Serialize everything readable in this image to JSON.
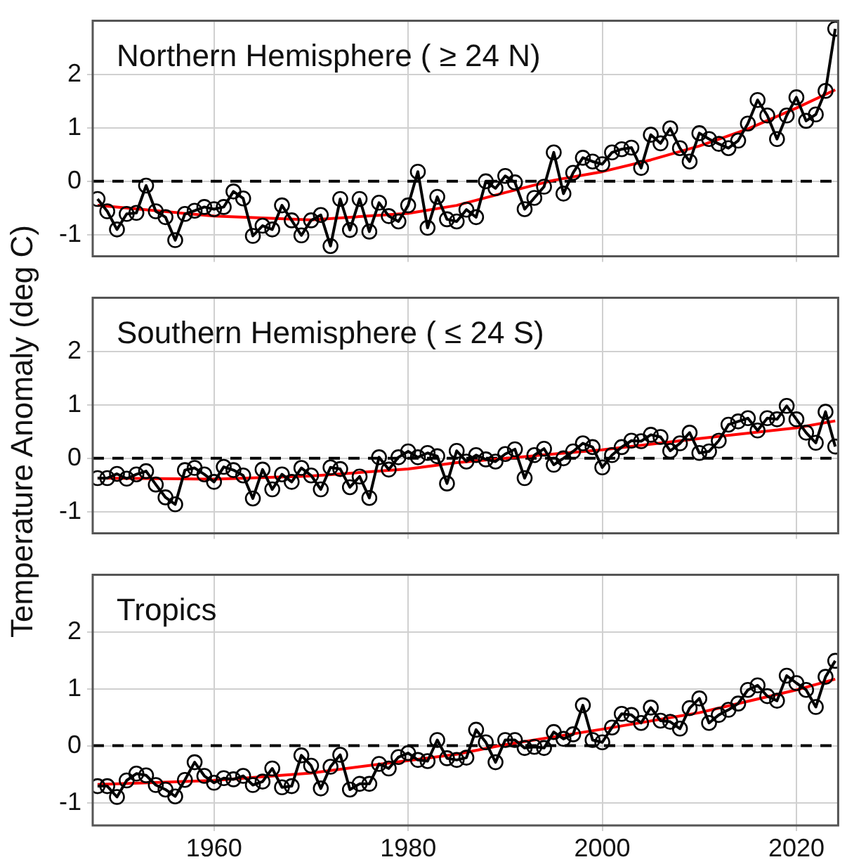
{
  "chart_data": [
    {
      "type": "line",
      "title": "Northern Hemisphere ( ≥ 24 N)",
      "xlim": [
        1947.5,
        2024.3
      ],
      "ylim": [
        -1.4,
        3
      ],
      "xticks": [
        1960,
        1980,
        2000,
        2020
      ],
      "yticks": [
        -1,
        0,
        1,
        2
      ],
      "grid": true,
      "tick_labels": "y",
      "ref_lines": [
        {
          "axis": "y",
          "value": 0,
          "color": "#000000",
          "line_style": "dashed"
        }
      ],
      "x": [
        1948,
        1949,
        1950,
        1951,
        1952,
        1953,
        1954,
        1955,
        1956,
        1957,
        1958,
        1959,
        1960,
        1961,
        1962,
        1963,
        1964,
        1965,
        1966,
        1967,
        1968,
        1969,
        1970,
        1971,
        1972,
        1973,
        1974,
        1975,
        1976,
        1977,
        1978,
        1979,
        1980,
        1981,
        1982,
        1983,
        1984,
        1985,
        1986,
        1987,
        1988,
        1989,
        1990,
        1991,
        1992,
        1993,
        1994,
        1995,
        1996,
        1997,
        1998,
        1999,
        2000,
        2001,
        2002,
        2003,
        2004,
        2005,
        2006,
        2007,
        2008,
        2009,
        2010,
        2011,
        2012,
        2013,
        2014,
        2015,
        2016,
        2017,
        2018,
        2019,
        2020,
        2021,
        2022,
        2023,
        2024
      ],
      "series": [
        {
          "type": "line",
          "color": "#000000",
          "marker": "circle",
          "line_style": "solid",
          "values": [
            -0.33,
            -0.56,
            -0.9,
            -0.61,
            -0.59,
            -0.08,
            -0.56,
            -0.67,
            -1.1,
            -0.61,
            -0.55,
            -0.48,
            -0.52,
            -0.48,
            -0.19,
            -0.32,
            -1.02,
            -0.83,
            -0.9,
            -0.45,
            -0.73,
            -1.01,
            -0.73,
            -0.63,
            -1.21,
            -0.33,
            -0.91,
            -0.33,
            -0.94,
            -0.4,
            -0.65,
            -0.75,
            -0.45,
            0.18,
            -0.87,
            -0.29,
            -0.71,
            -0.75,
            -0.53,
            -0.67,
            0.0,
            -0.13,
            0.1,
            -0.02,
            -0.52,
            -0.31,
            -0.1,
            0.54,
            -0.23,
            0.16,
            0.44,
            0.37,
            0.32,
            0.54,
            0.6,
            0.63,
            0.25,
            0.87,
            0.71,
            0.99,
            0.62,
            0.37,
            0.9,
            0.79,
            0.7,
            0.62,
            0.76,
            1.08,
            1.52,
            1.23,
            0.79,
            1.23,
            1.57,
            1.13,
            1.25,
            1.69,
            2.85
          ]
        },
        {
          "type": "line",
          "color": "#ff0000",
          "marker": "none",
          "line_style": "solid",
          "x": [
            1948,
            1960,
            1970,
            1980,
            1985,
            1990,
            1995,
            2000,
            2005,
            2010,
            2015,
            2020,
            2024
          ],
          "values": [
            -0.45,
            -0.65,
            -0.72,
            -0.6,
            -0.45,
            -0.21,
            0.02,
            0.18,
            0.4,
            0.66,
            0.98,
            1.37,
            1.71
          ]
        }
      ]
    },
    {
      "type": "line",
      "title": "Southern Hemisphere ( ≤ 24 S)",
      "ylabel": "Temperature Anomaly (deg C)",
      "xlim": [
        1947.5,
        2024.3
      ],
      "ylim": [
        -1.4,
        3
      ],
      "xticks": [
        1960,
        1980,
        2000,
        2020
      ],
      "yticks": [
        -1,
        0,
        1,
        2
      ],
      "grid": true,
      "tick_labels": "y",
      "ref_lines": [
        {
          "axis": "y",
          "value": 0,
          "color": "#000000",
          "line_style": "dashed"
        }
      ],
      "x": [
        1948,
        1949,
        1950,
        1951,
        1952,
        1953,
        1954,
        1955,
        1956,
        1957,
        1958,
        1959,
        1960,
        1961,
        1962,
        1963,
        1964,
        1965,
        1966,
        1967,
        1968,
        1969,
        1970,
        1971,
        1972,
        1973,
        1974,
        1975,
        1976,
        1977,
        1978,
        1979,
        1980,
        1981,
        1982,
        1983,
        1984,
        1985,
        1986,
        1987,
        1988,
        1989,
        1990,
        1991,
        1992,
        1993,
        1994,
        1995,
        1996,
        1997,
        1998,
        1999,
        2000,
        2001,
        2002,
        2003,
        2004,
        2005,
        2006,
        2007,
        2008,
        2009,
        2010,
        2011,
        2012,
        2013,
        2014,
        2015,
        2016,
        2017,
        2018,
        2019,
        2020,
        2021,
        2022,
        2023,
        2024
      ],
      "series": [
        {
          "type": "line",
          "color": "#000000",
          "marker": "circle",
          "line_style": "solid",
          "values": [
            -0.37,
            -0.37,
            -0.29,
            -0.38,
            -0.3,
            -0.24,
            -0.49,
            -0.73,
            -0.86,
            -0.22,
            -0.18,
            -0.3,
            -0.44,
            -0.16,
            -0.22,
            -0.32,
            -0.75,
            -0.21,
            -0.58,
            -0.3,
            -0.44,
            -0.18,
            -0.32,
            -0.58,
            -0.17,
            -0.2,
            -0.54,
            -0.34,
            -0.74,
            0.02,
            -0.21,
            0.02,
            0.13,
            0.02,
            0.1,
            0.04,
            -0.47,
            0.14,
            -0.06,
            0.06,
            -0.02,
            -0.06,
            0.08,
            0.17,
            -0.37,
            0.06,
            0.18,
            -0.12,
            0.0,
            0.13,
            0.28,
            0.21,
            -0.17,
            0.06,
            0.21,
            0.33,
            0.32,
            0.44,
            0.4,
            0.14,
            0.28,
            0.48,
            0.1,
            0.13,
            0.33,
            0.63,
            0.69,
            0.75,
            0.52,
            0.75,
            0.73,
            0.98,
            0.73,
            0.48,
            0.29,
            0.87,
            0.22
          ]
        },
        {
          "type": "line",
          "color": "#ff0000",
          "marker": "none",
          "line_style": "solid",
          "x": [
            1948,
            1960,
            1970,
            1980,
            1985,
            1990,
            2000,
            2010,
            2020,
            2024
          ],
          "values": [
            -0.37,
            -0.39,
            -0.33,
            -0.2,
            -0.08,
            0.0,
            0.16,
            0.37,
            0.57,
            0.7
          ]
        }
      ]
    },
    {
      "type": "line",
      "title": "Tropics",
      "xlim": [
        1947.5,
        2024.3
      ],
      "ylim": [
        -1.4,
        3
      ],
      "xticks": [
        1960,
        1980,
        2000,
        2020
      ],
      "yticks": [
        -1,
        0,
        1,
        2
      ],
      "grid": true,
      "ref_lines": [
        {
          "axis": "y",
          "value": 0,
          "color": "#000000",
          "line_style": "dashed"
        }
      ],
      "x": [
        1948,
        1949,
        1950,
        1951,
        1952,
        1953,
        1954,
        1955,
        1956,
        1957,
        1958,
        1959,
        1960,
        1961,
        1962,
        1963,
        1964,
        1965,
        1966,
        1967,
        1968,
        1969,
        1970,
        1971,
        1972,
        1973,
        1974,
        1975,
        1976,
        1977,
        1978,
        1979,
        1980,
        1981,
        1982,
        1983,
        1984,
        1985,
        1986,
        1987,
        1988,
        1989,
        1990,
        1991,
        1992,
        1993,
        1994,
        1995,
        1996,
        1997,
        1998,
        1999,
        2000,
        2001,
        2002,
        2003,
        2004,
        2005,
        2006,
        2007,
        2008,
        2009,
        2010,
        2011,
        2012,
        2013,
        2014,
        2015,
        2016,
        2017,
        2018,
        2019,
        2020,
        2021,
        2022,
        2023,
        2024
      ],
      "series": [
        {
          "type": "line",
          "color": "#000000",
          "marker": "circle",
          "line_style": "solid",
          "values": [
            -0.71,
            -0.71,
            -0.9,
            -0.61,
            -0.49,
            -0.52,
            -0.69,
            -0.77,
            -0.89,
            -0.6,
            -0.29,
            -0.53,
            -0.65,
            -0.57,
            -0.59,
            -0.53,
            -0.69,
            -0.63,
            -0.4,
            -0.73,
            -0.71,
            -0.17,
            -0.35,
            -0.75,
            -0.37,
            -0.16,
            -0.77,
            -0.67,
            -0.67,
            -0.32,
            -0.4,
            -0.2,
            -0.13,
            -0.25,
            -0.27,
            0.1,
            -0.22,
            -0.25,
            -0.21,
            0.28,
            0.06,
            -0.29,
            0.1,
            0.1,
            -0.04,
            -0.02,
            -0.04,
            0.24,
            0.12,
            0.2,
            0.71,
            0.1,
            0.06,
            0.32,
            0.56,
            0.54,
            0.4,
            0.67,
            0.44,
            0.42,
            0.3,
            0.66,
            0.83,
            0.4,
            0.54,
            0.63,
            0.74,
            0.98,
            1.06,
            0.87,
            0.79,
            1.23,
            1.1,
            0.98,
            0.68,
            1.21,
            1.49
          ]
        },
        {
          "type": "line",
          "color": "#ff0000",
          "marker": "none",
          "line_style": "solid",
          "x": [
            1948,
            1960,
            1970,
            1980,
            1985,
            1990,
            2000,
            2010,
            2020,
            2024
          ],
          "values": [
            -0.68,
            -0.61,
            -0.48,
            -0.26,
            -0.15,
            0.02,
            0.29,
            0.58,
            0.98,
            1.17
          ]
        }
      ]
    }
  ]
}
